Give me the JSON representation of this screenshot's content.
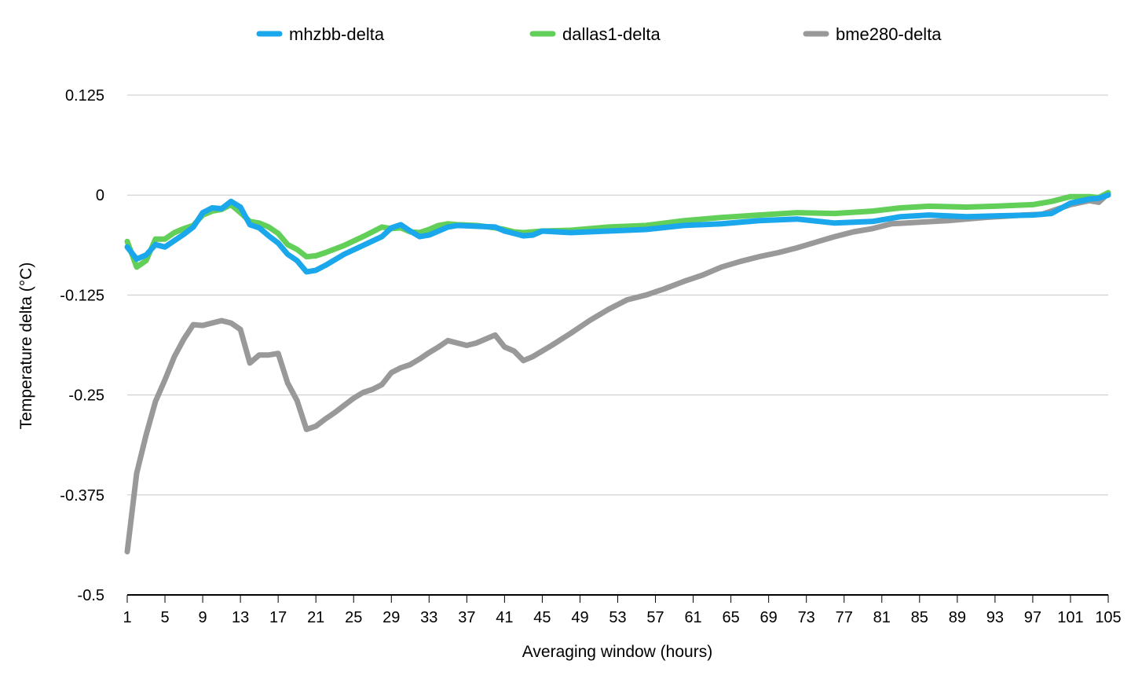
{
  "chart_data": {
    "type": "line",
    "title": "",
    "xlabel": "Averaging window (hours)",
    "ylabel": "Temperature delta (°C)",
    "xlim": [
      1,
      105
    ],
    "ylim": [
      -0.5,
      0.125
    ],
    "y_ticks": [
      0.125,
      0,
      -0.125,
      -0.25,
      -0.375,
      -0.5
    ],
    "y_tick_labels": [
      "0.125",
      "0",
      "-0.125",
      "-0.25",
      "-0.375",
      "-0.5"
    ],
    "x_ticks": [
      1,
      5,
      9,
      13,
      17,
      21,
      25,
      29,
      33,
      37,
      41,
      45,
      49,
      53,
      57,
      61,
      65,
      69,
      73,
      77,
      81,
      85,
      89,
      93,
      97,
      101,
      105
    ],
    "x_tick_labels": [
      "1",
      "5",
      "9",
      "13",
      "17",
      "21",
      "25",
      "29",
      "33",
      "37",
      "41",
      "45",
      "49",
      "53",
      "57",
      "61",
      "65",
      "69",
      "73",
      "77",
      "81",
      "85",
      "89",
      "93",
      "97",
      "101",
      "105"
    ],
    "grid": true,
    "legend_position": "top",
    "series": [
      {
        "name": "mhzbb-delta",
        "color": "#1aa7ec",
        "points": [
          [
            1,
            -0.065
          ],
          [
            2,
            -0.08
          ],
          [
            3,
            -0.075
          ],
          [
            4,
            -0.062
          ],
          [
            5,
            -0.065
          ],
          [
            6,
            -0.057
          ],
          [
            7,
            -0.049
          ],
          [
            8,
            -0.04
          ],
          [
            9,
            -0.022
          ],
          [
            10,
            -0.016
          ],
          [
            11,
            -0.017
          ],
          [
            12,
            -0.008
          ],
          [
            13,
            -0.015
          ],
          [
            14,
            -0.037
          ],
          [
            15,
            -0.041
          ],
          [
            16,
            -0.051
          ],
          [
            17,
            -0.06
          ],
          [
            18,
            -0.074
          ],
          [
            19,
            -0.082
          ],
          [
            20,
            -0.096
          ],
          [
            21,
            -0.094
          ],
          [
            22,
            -0.088
          ],
          [
            24,
            -0.074
          ],
          [
            26,
            -0.063
          ],
          [
            28,
            -0.052
          ],
          [
            29,
            -0.041
          ],
          [
            30,
            -0.037
          ],
          [
            31,
            -0.045
          ],
          [
            32,
            -0.052
          ],
          [
            33,
            -0.05
          ],
          [
            34,
            -0.045
          ],
          [
            35,
            -0.04
          ],
          [
            36,
            -0.038
          ],
          [
            38,
            -0.039
          ],
          [
            40,
            -0.04
          ],
          [
            41,
            -0.045
          ],
          [
            42,
            -0.048
          ],
          [
            43,
            -0.051
          ],
          [
            44,
            -0.05
          ],
          [
            45,
            -0.045
          ],
          [
            48,
            -0.047
          ],
          [
            52,
            -0.045
          ],
          [
            56,
            -0.043
          ],
          [
            60,
            -0.038
          ],
          [
            64,
            -0.036
          ],
          [
            68,
            -0.032
          ],
          [
            72,
            -0.03
          ],
          [
            76,
            -0.035
          ],
          [
            80,
            -0.033
          ],
          [
            83,
            -0.027
          ],
          [
            86,
            -0.025
          ],
          [
            90,
            -0.027
          ],
          [
            93,
            -0.026
          ],
          [
            97,
            -0.025
          ],
          [
            99,
            -0.023
          ],
          [
            101,
            -0.01
          ],
          [
            103,
            -0.005
          ],
          [
            104,
            -0.004
          ],
          [
            105,
            0
          ]
        ]
      },
      {
        "name": "dallas1-delta",
        "color": "#62cf58",
        "points": [
          [
            1,
            -0.058
          ],
          [
            2,
            -0.09
          ],
          [
            3,
            -0.082
          ],
          [
            4,
            -0.055
          ],
          [
            5,
            -0.055
          ],
          [
            6,
            -0.047
          ],
          [
            7,
            -0.042
          ],
          [
            8,
            -0.038
          ],
          [
            9,
            -0.025
          ],
          [
            10,
            -0.02
          ],
          [
            11,
            -0.018
          ],
          [
            12,
            -0.012
          ],
          [
            13,
            -0.022
          ],
          [
            14,
            -0.033
          ],
          [
            15,
            -0.035
          ],
          [
            16,
            -0.04
          ],
          [
            17,
            -0.048
          ],
          [
            18,
            -0.062
          ],
          [
            19,
            -0.068
          ],
          [
            20,
            -0.077
          ],
          [
            21,
            -0.076
          ],
          [
            22,
            -0.072
          ],
          [
            24,
            -0.063
          ],
          [
            26,
            -0.052
          ],
          [
            28,
            -0.04
          ],
          [
            29,
            -0.042
          ],
          [
            30,
            -0.041
          ],
          [
            31,
            -0.046
          ],
          [
            32,
            -0.047
          ],
          [
            33,
            -0.043
          ],
          [
            34,
            -0.038
          ],
          [
            35,
            -0.036
          ],
          [
            36,
            -0.037
          ],
          [
            38,
            -0.038
          ],
          [
            40,
            -0.041
          ],
          [
            41,
            -0.043
          ],
          [
            42,
            -0.046
          ],
          [
            43,
            -0.047
          ],
          [
            45,
            -0.045
          ],
          [
            48,
            -0.044
          ],
          [
            52,
            -0.04
          ],
          [
            56,
            -0.038
          ],
          [
            60,
            -0.032
          ],
          [
            64,
            -0.028
          ],
          [
            68,
            -0.025
          ],
          [
            72,
            -0.022
          ],
          [
            76,
            -0.023
          ],
          [
            80,
            -0.02
          ],
          [
            83,
            -0.016
          ],
          [
            86,
            -0.014
          ],
          [
            90,
            -0.015
          ],
          [
            93,
            -0.014
          ],
          [
            97,
            -0.012
          ],
          [
            99,
            -0.008
          ],
          [
            101,
            -0.002
          ],
          [
            103,
            -0.002
          ],
          [
            104,
            -0.003
          ],
          [
            105,
            0.003
          ]
        ]
      },
      {
        "name": "bme280-delta",
        "color": "#999999",
        "points": [
          [
            1,
            -0.446
          ],
          [
            2,
            -0.348
          ],
          [
            3,
            -0.3
          ],
          [
            4,
            -0.258
          ],
          [
            5,
            -0.231
          ],
          [
            6,
            -0.202
          ],
          [
            7,
            -0.18
          ],
          [
            8,
            -0.162
          ],
          [
            9,
            -0.163
          ],
          [
            10,
            -0.16
          ],
          [
            11,
            -0.157
          ],
          [
            12,
            -0.16
          ],
          [
            13,
            -0.168
          ],
          [
            14,
            -0.21
          ],
          [
            15,
            -0.2
          ],
          [
            16,
            -0.2
          ],
          [
            17,
            -0.198
          ],
          [
            18,
            -0.235
          ],
          [
            19,
            -0.257
          ],
          [
            20,
            -0.293
          ],
          [
            21,
            -0.289
          ],
          [
            22,
            -0.28
          ],
          [
            23,
            -0.272
          ],
          [
            24,
            -0.263
          ],
          [
            25,
            -0.254
          ],
          [
            26,
            -0.247
          ],
          [
            27,
            -0.243
          ],
          [
            28,
            -0.237
          ],
          [
            29,
            -0.222
          ],
          [
            30,
            -0.216
          ],
          [
            31,
            -0.212
          ],
          [
            32,
            -0.205
          ],
          [
            33,
            -0.197
          ],
          [
            34,
            -0.19
          ],
          [
            35,
            -0.182
          ],
          [
            36,
            -0.185
          ],
          [
            37,
            -0.188
          ],
          [
            38,
            -0.185
          ],
          [
            39,
            -0.18
          ],
          [
            40,
            -0.175
          ],
          [
            41,
            -0.19
          ],
          [
            42,
            -0.195
          ],
          [
            43,
            -0.207
          ],
          [
            44,
            -0.202
          ],
          [
            46,
            -0.188
          ],
          [
            48,
            -0.173
          ],
          [
            50,
            -0.157
          ],
          [
            52,
            -0.143
          ],
          [
            54,
            -0.131
          ],
          [
            56,
            -0.125
          ],
          [
            58,
            -0.117
          ],
          [
            60,
            -0.108
          ],
          [
            62,
            -0.1
          ],
          [
            64,
            -0.09
          ],
          [
            66,
            -0.083
          ],
          [
            68,
            -0.077
          ],
          [
            70,
            -0.072
          ],
          [
            72,
            -0.066
          ],
          [
            74,
            -0.059
          ],
          [
            76,
            -0.052
          ],
          [
            78,
            -0.046
          ],
          [
            80,
            -0.042
          ],
          [
            82,
            -0.036
          ],
          [
            85,
            -0.034
          ],
          [
            88,
            -0.032
          ],
          [
            92,
            -0.028
          ],
          [
            96,
            -0.025
          ],
          [
            98,
            -0.024
          ],
          [
            101,
            -0.012
          ],
          [
            103,
            -0.007
          ],
          [
            104,
            -0.009
          ],
          [
            105,
            0.002
          ]
        ]
      }
    ]
  }
}
